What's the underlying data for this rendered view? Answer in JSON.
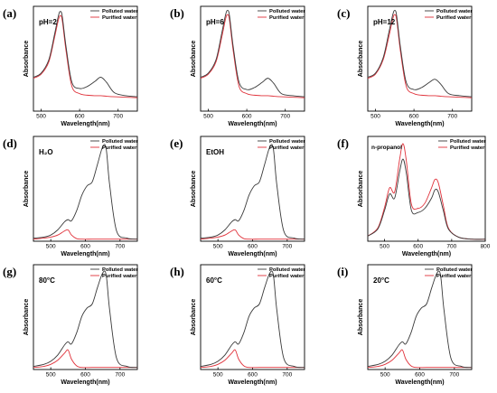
{
  "figure": {
    "legend_items": [
      "Polluted water",
      "Purified water"
    ],
    "colors": {
      "polluted": "#3a3a3a",
      "purified": "#e0313a"
    }
  },
  "chart_data": [
    {
      "id": "a",
      "panel_label": "(a)",
      "type": "line",
      "condition": "pH=2",
      "xlabel": "Wavelength(nm)",
      "ylabel": "Absorbance",
      "xlim": [
        480,
        750
      ],
      "xticks": [
        500,
        600,
        700
      ],
      "legend": "top-right",
      "series": [
        {
          "name": "Polluted water",
          "x": [
            480,
            500,
            520,
            535,
            545,
            550,
            555,
            565,
            580,
            600,
            620,
            640,
            655,
            670,
            690,
            720,
            750
          ],
          "y": [
            0.33,
            0.37,
            0.5,
            0.75,
            0.93,
            0.97,
            0.92,
            0.62,
            0.28,
            0.22,
            0.24,
            0.29,
            0.33,
            0.28,
            0.18,
            0.15,
            0.14
          ]
        },
        {
          "name": "Purified water",
          "x": [
            480,
            500,
            520,
            535,
            545,
            550,
            555,
            565,
            580,
            600,
            620,
            640,
            655,
            670,
            690,
            720,
            750
          ],
          "y": [
            0.32,
            0.36,
            0.48,
            0.72,
            0.89,
            0.93,
            0.88,
            0.58,
            0.24,
            0.17,
            0.155,
            0.15,
            0.15,
            0.145,
            0.14,
            0.135,
            0.13
          ]
        }
      ]
    },
    {
      "id": "b",
      "panel_label": "(b)",
      "type": "line",
      "condition": "pH=6",
      "xlabel": "Wavelength(nm)",
      "ylabel": "Absorbance",
      "xlim": [
        480,
        750
      ],
      "xticks": [
        500,
        600,
        700
      ],
      "legend": "top-right",
      "series": [
        {
          "name": "Polluted water",
          "x": [
            480,
            500,
            520,
            535,
            545,
            550,
            555,
            565,
            580,
            600,
            620,
            640,
            655,
            670,
            690,
            720,
            750
          ],
          "y": [
            0.33,
            0.37,
            0.5,
            0.76,
            0.94,
            0.98,
            0.93,
            0.62,
            0.28,
            0.21,
            0.23,
            0.28,
            0.32,
            0.27,
            0.17,
            0.15,
            0.14
          ]
        },
        {
          "name": "Purified water",
          "x": [
            480,
            500,
            520,
            535,
            545,
            550,
            555,
            565,
            580,
            600,
            620,
            640,
            655,
            670,
            690,
            720,
            750
          ],
          "y": [
            0.32,
            0.36,
            0.48,
            0.72,
            0.9,
            0.94,
            0.89,
            0.58,
            0.24,
            0.17,
            0.155,
            0.15,
            0.15,
            0.145,
            0.14,
            0.135,
            0.13
          ]
        }
      ]
    },
    {
      "id": "c",
      "panel_label": "(c)",
      "type": "line",
      "condition": "pH=12",
      "xlabel": "Wavelength(nm)",
      "ylabel": "Absorbance",
      "xlim": [
        480,
        750
      ],
      "xticks": [
        500,
        600,
        700
      ],
      "legend": "top-right",
      "series": [
        {
          "name": "Polluted water",
          "x": [
            480,
            500,
            520,
            535,
            545,
            550,
            555,
            565,
            580,
            600,
            620,
            640,
            655,
            670,
            690,
            720,
            750
          ],
          "y": [
            0.33,
            0.37,
            0.52,
            0.77,
            0.94,
            0.98,
            0.93,
            0.62,
            0.28,
            0.21,
            0.23,
            0.28,
            0.31,
            0.26,
            0.17,
            0.15,
            0.14
          ]
        },
        {
          "name": "Purified water",
          "x": [
            480,
            500,
            520,
            535,
            545,
            550,
            555,
            565,
            580,
            600,
            620,
            640,
            655,
            670,
            690,
            720,
            750
          ],
          "y": [
            0.32,
            0.36,
            0.5,
            0.73,
            0.9,
            0.94,
            0.89,
            0.58,
            0.24,
            0.17,
            0.155,
            0.15,
            0.15,
            0.145,
            0.14,
            0.135,
            0.13
          ]
        }
      ]
    },
    {
      "id": "d",
      "panel_label": "(d)",
      "type": "line",
      "condition": "H₂O",
      "xlabel": "Wavelength(nm)",
      "ylabel": "Absorbance",
      "xlim": [
        450,
        750
      ],
      "xticks": [
        500,
        600,
        700
      ],
      "legend": "top-right",
      "series": [
        {
          "name": "Polluted water",
          "x": [
            450,
            480,
            500,
            520,
            540,
            550,
            560,
            575,
            590,
            605,
            620,
            635,
            650,
            660,
            670,
            690,
            720,
            750
          ],
          "y": [
            0.03,
            0.04,
            0.06,
            0.11,
            0.19,
            0.21,
            0.2,
            0.3,
            0.45,
            0.54,
            0.58,
            0.75,
            0.92,
            0.9,
            0.55,
            0.1,
            0.03,
            0.02
          ]
        },
        {
          "name": "Purified water",
          "x": [
            450,
            480,
            500,
            520,
            540,
            550,
            560,
            575,
            590,
            620,
            660,
            700,
            750
          ],
          "y": [
            0.02,
            0.03,
            0.04,
            0.06,
            0.1,
            0.11,
            0.06,
            0.025,
            0.02,
            0.02,
            0.02,
            0.02,
            0.02
          ]
        }
      ]
    },
    {
      "id": "e",
      "panel_label": "(e)",
      "type": "line",
      "condition": "EtOH",
      "xlabel": "Wavelength(nm)",
      "ylabel": "Absorbance",
      "xlim": [
        450,
        750
      ],
      "xticks": [
        500,
        600,
        700
      ],
      "legend": "top-right",
      "series": [
        {
          "name": "Polluted water",
          "x": [
            450,
            480,
            500,
            520,
            540,
            550,
            560,
            575,
            590,
            605,
            620,
            635,
            650,
            660,
            670,
            690,
            720,
            750
          ],
          "y": [
            0.03,
            0.04,
            0.06,
            0.11,
            0.19,
            0.21,
            0.2,
            0.3,
            0.45,
            0.54,
            0.58,
            0.75,
            0.92,
            0.9,
            0.55,
            0.1,
            0.03,
            0.02
          ]
        },
        {
          "name": "Purified water",
          "x": [
            450,
            480,
            500,
            520,
            540,
            550,
            560,
            575,
            590,
            620,
            660,
            700,
            750
          ],
          "y": [
            0.02,
            0.03,
            0.04,
            0.06,
            0.1,
            0.11,
            0.06,
            0.025,
            0.02,
            0.02,
            0.02,
            0.02,
            0.02
          ]
        }
      ]
    },
    {
      "id": "f",
      "panel_label": "(f)",
      "type": "line",
      "condition": "n-propanol",
      "xlabel": "Wavelength(nm)",
      "ylabel": "Absorbance",
      "xlim": [
        450,
        800
      ],
      "xticks": [
        500,
        600,
        700,
        800
      ],
      "legend": "top-right",
      "series": [
        {
          "name": "Polluted water",
          "x": [
            450,
            480,
            500,
            515,
            530,
            545,
            555,
            565,
            580,
            600,
            620,
            640,
            650,
            660,
            675,
            690,
            720,
            760,
            800
          ],
          "y": [
            0.05,
            0.12,
            0.3,
            0.46,
            0.42,
            0.68,
            0.8,
            0.66,
            0.3,
            0.28,
            0.32,
            0.42,
            0.5,
            0.48,
            0.3,
            0.12,
            0.04,
            0.02,
            0.02
          ]
        },
        {
          "name": "Purified water",
          "x": [
            450,
            480,
            500,
            515,
            530,
            545,
            555,
            565,
            580,
            600,
            620,
            640,
            650,
            660,
            675,
            690,
            720,
            760,
            800
          ],
          "y": [
            0.05,
            0.13,
            0.33,
            0.52,
            0.48,
            0.8,
            0.95,
            0.78,
            0.36,
            0.32,
            0.37,
            0.52,
            0.6,
            0.57,
            0.35,
            0.13,
            0.04,
            0.02,
            0.02
          ]
        }
      ]
    },
    {
      "id": "g",
      "panel_label": "(g)",
      "type": "line",
      "condition": "80°C",
      "xlabel": "Wavelength(nm)",
      "ylabel": "Absorbance",
      "xlim": [
        450,
        750
      ],
      "xticks": [
        500,
        600,
        700
      ],
      "legend": "top-right",
      "series": [
        {
          "name": "Polluted water",
          "x": [
            450,
            480,
            500,
            520,
            540,
            550,
            560,
            575,
            590,
            605,
            620,
            635,
            650,
            660,
            670,
            690,
            720,
            750
          ],
          "y": [
            0.03,
            0.05,
            0.08,
            0.14,
            0.24,
            0.27,
            0.25,
            0.36,
            0.52,
            0.6,
            0.64,
            0.8,
            0.94,
            0.92,
            0.58,
            0.11,
            0.03,
            0.02
          ]
        },
        {
          "name": "Purified water",
          "x": [
            450,
            480,
            500,
            520,
            540,
            550,
            560,
            575,
            590,
            620,
            660,
            700,
            750
          ],
          "y": [
            0.02,
            0.03,
            0.05,
            0.09,
            0.16,
            0.19,
            0.1,
            0.035,
            0.02,
            0.02,
            0.02,
            0.02,
            0.02
          ]
        }
      ]
    },
    {
      "id": "h",
      "panel_label": "(h)",
      "type": "line",
      "condition": "60°C",
      "xlabel": "Wavelength(nm)",
      "ylabel": "Absorbance",
      "xlim": [
        450,
        750
      ],
      "xticks": [
        500,
        600,
        700
      ],
      "legend": "top-right",
      "series": [
        {
          "name": "Polluted water",
          "x": [
            450,
            480,
            500,
            520,
            540,
            550,
            560,
            575,
            590,
            605,
            620,
            635,
            650,
            660,
            670,
            690,
            720,
            750
          ],
          "y": [
            0.03,
            0.05,
            0.08,
            0.14,
            0.24,
            0.27,
            0.25,
            0.36,
            0.52,
            0.6,
            0.64,
            0.8,
            0.94,
            0.92,
            0.58,
            0.11,
            0.03,
            0.02
          ]
        },
        {
          "name": "Purified water",
          "x": [
            450,
            480,
            500,
            520,
            540,
            550,
            560,
            575,
            590,
            620,
            660,
            700,
            750
          ],
          "y": [
            0.02,
            0.03,
            0.05,
            0.09,
            0.16,
            0.19,
            0.1,
            0.035,
            0.02,
            0.02,
            0.02,
            0.02,
            0.02
          ]
        }
      ]
    },
    {
      "id": "i",
      "panel_label": "(i)",
      "type": "line",
      "condition": "20°C",
      "xlabel": "Wavelength(nm)",
      "ylabel": "Absorbance",
      "xlim": [
        450,
        750
      ],
      "xticks": [
        500,
        600,
        700
      ],
      "legend": "top-right",
      "series": [
        {
          "name": "Polluted water",
          "x": [
            450,
            480,
            500,
            520,
            540,
            550,
            560,
            575,
            590,
            605,
            620,
            635,
            650,
            660,
            670,
            690,
            720,
            750
          ],
          "y": [
            0.03,
            0.05,
            0.08,
            0.14,
            0.24,
            0.27,
            0.25,
            0.36,
            0.52,
            0.6,
            0.64,
            0.8,
            0.94,
            0.92,
            0.58,
            0.11,
            0.03,
            0.02
          ]
        },
        {
          "name": "Purified water",
          "x": [
            450,
            480,
            500,
            520,
            540,
            550,
            560,
            575,
            590,
            620,
            660,
            700,
            750
          ],
          "y": [
            0.02,
            0.03,
            0.05,
            0.09,
            0.16,
            0.19,
            0.1,
            0.035,
            0.02,
            0.02,
            0.02,
            0.02,
            0.02
          ]
        }
      ]
    }
  ]
}
